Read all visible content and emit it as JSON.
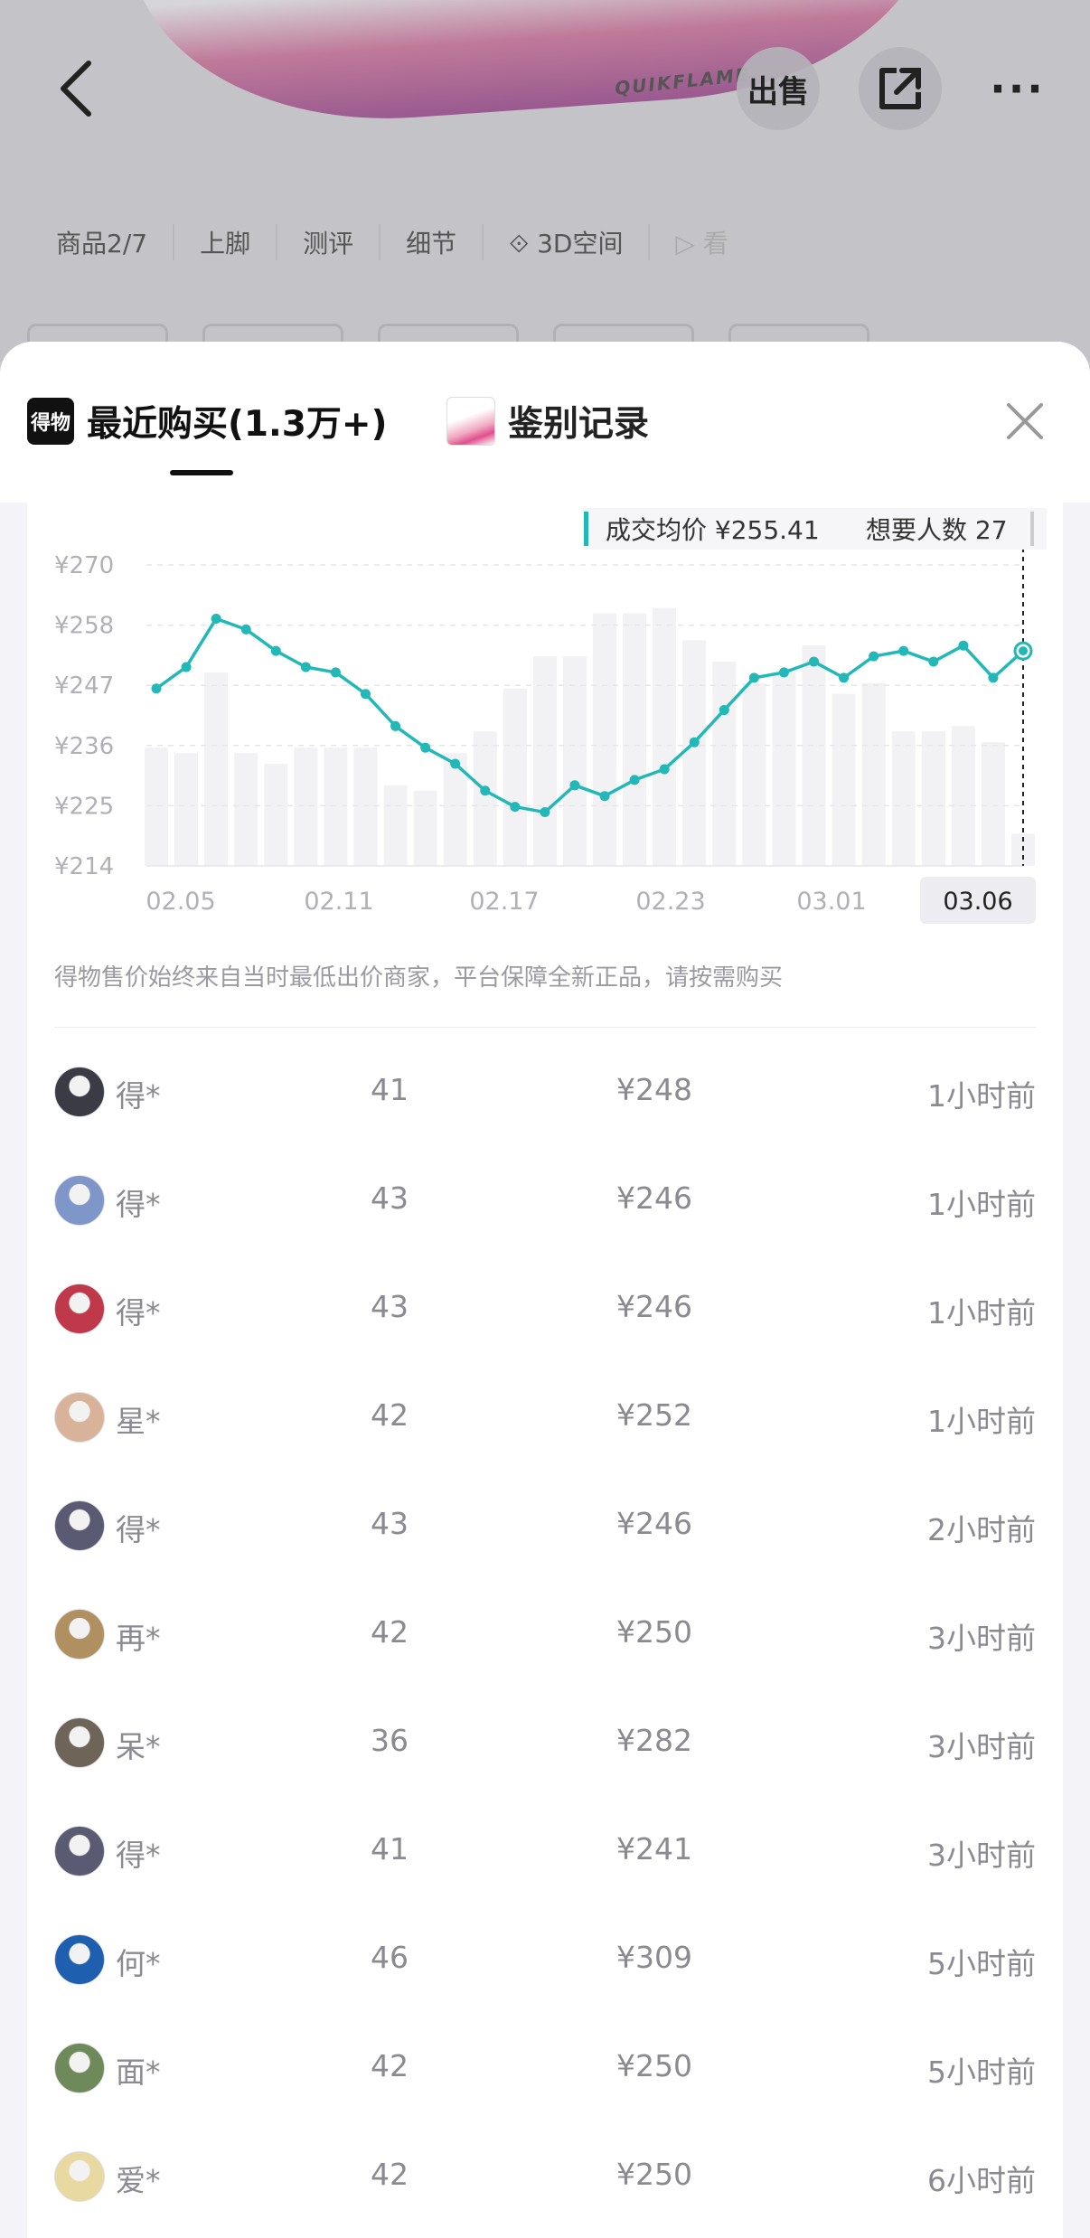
{
  "top_bar": {
    "sell_label": "出售",
    "brand_text": "QUIKFLAME"
  },
  "media_tabs": [
    {
      "label": "商品2/7"
    },
    {
      "label": "上脚"
    },
    {
      "label": "测评"
    },
    {
      "label": "细节"
    },
    {
      "label": "3D空间"
    },
    {
      "label": "看"
    }
  ],
  "sheet": {
    "tabs": {
      "recent": {
        "logo": "得物",
        "label": "最近购买(1.3万+)"
      },
      "auth": {
        "label": "鉴别记录"
      }
    },
    "tooltip": {
      "avg_label": "成交均价 ¥255.41",
      "want_label": "想要人数 27"
    },
    "note": "得物售价始终来自当时最低出价商家，平台保障全新正品，请按需购买"
  },
  "colors": {
    "line": "#22b8b8",
    "bar": "#f2f2f5",
    "grid": "#e6e6ea"
  },
  "chart_data": {
    "type": "line",
    "ylabels": [
      "¥270",
      "¥258",
      "¥247",
      "¥236",
      "¥225",
      "¥214"
    ],
    "ylim": [
      214,
      270
    ],
    "x_tick_labels": [
      "02.05",
      "02.11",
      "02.17",
      "02.23",
      "03.01",
      "03.06"
    ],
    "selected_x": "03.06",
    "series": [
      {
        "values": [
          247,
          251,
          260,
          258,
          254,
          251,
          250,
          246,
          240,
          236,
          233,
          228,
          225,
          224,
          229,
          227,
          230,
          232,
          237,
          243,
          249,
          250,
          252,
          249,
          253,
          254,
          252,
          255,
          249,
          254
        ]
      }
    ],
    "bar_values": [
      236,
      235,
      250,
      235,
      233,
      236,
      236,
      236,
      229,
      228,
      235,
      239,
      247,
      253,
      253,
      261,
      261,
      262,
      256,
      252,
      248,
      250,
      255,
      246,
      248,
      239,
      239,
      240,
      237,
      220
    ],
    "grid": "dashed-horizontal"
  },
  "records": [
    {
      "user": "得*",
      "size": "41",
      "price": "¥248",
      "time": "1小时前",
      "avatar": "#3b3b46"
    },
    {
      "user": "得*",
      "size": "43",
      "price": "¥246",
      "time": "1小时前",
      "avatar": "#7f96c8"
    },
    {
      "user": "得*",
      "size": "43",
      "price": "¥246",
      "time": "1小时前",
      "avatar": "#c0394a"
    },
    {
      "user": "星*",
      "size": "42",
      "price": "¥252",
      "time": "1小时前",
      "avatar": "#d8b39a"
    },
    {
      "user": "得*",
      "size": "43",
      "price": "¥246",
      "time": "2小时前",
      "avatar": "#5a5a72"
    },
    {
      "user": "再*",
      "size": "42",
      "price": "¥250",
      "time": "3小时前",
      "avatar": "#b09060"
    },
    {
      "user": "呆*",
      "size": "36",
      "price": "¥282",
      "time": "3小时前",
      "avatar": "#6e6458"
    },
    {
      "user": "得*",
      "size": "41",
      "price": "¥241",
      "time": "3小时前",
      "avatar": "#5a5a72"
    },
    {
      "user": "何*",
      "size": "46",
      "price": "¥309",
      "time": "5小时前",
      "avatar": "#1f5fb0"
    },
    {
      "user": "面*",
      "size": "42",
      "price": "¥250",
      "time": "5小时前",
      "avatar": "#6f8a5a"
    },
    {
      "user": "爱*",
      "size": "42",
      "price": "¥250",
      "time": "6小时前",
      "avatar": "#e8d9a0"
    }
  ]
}
